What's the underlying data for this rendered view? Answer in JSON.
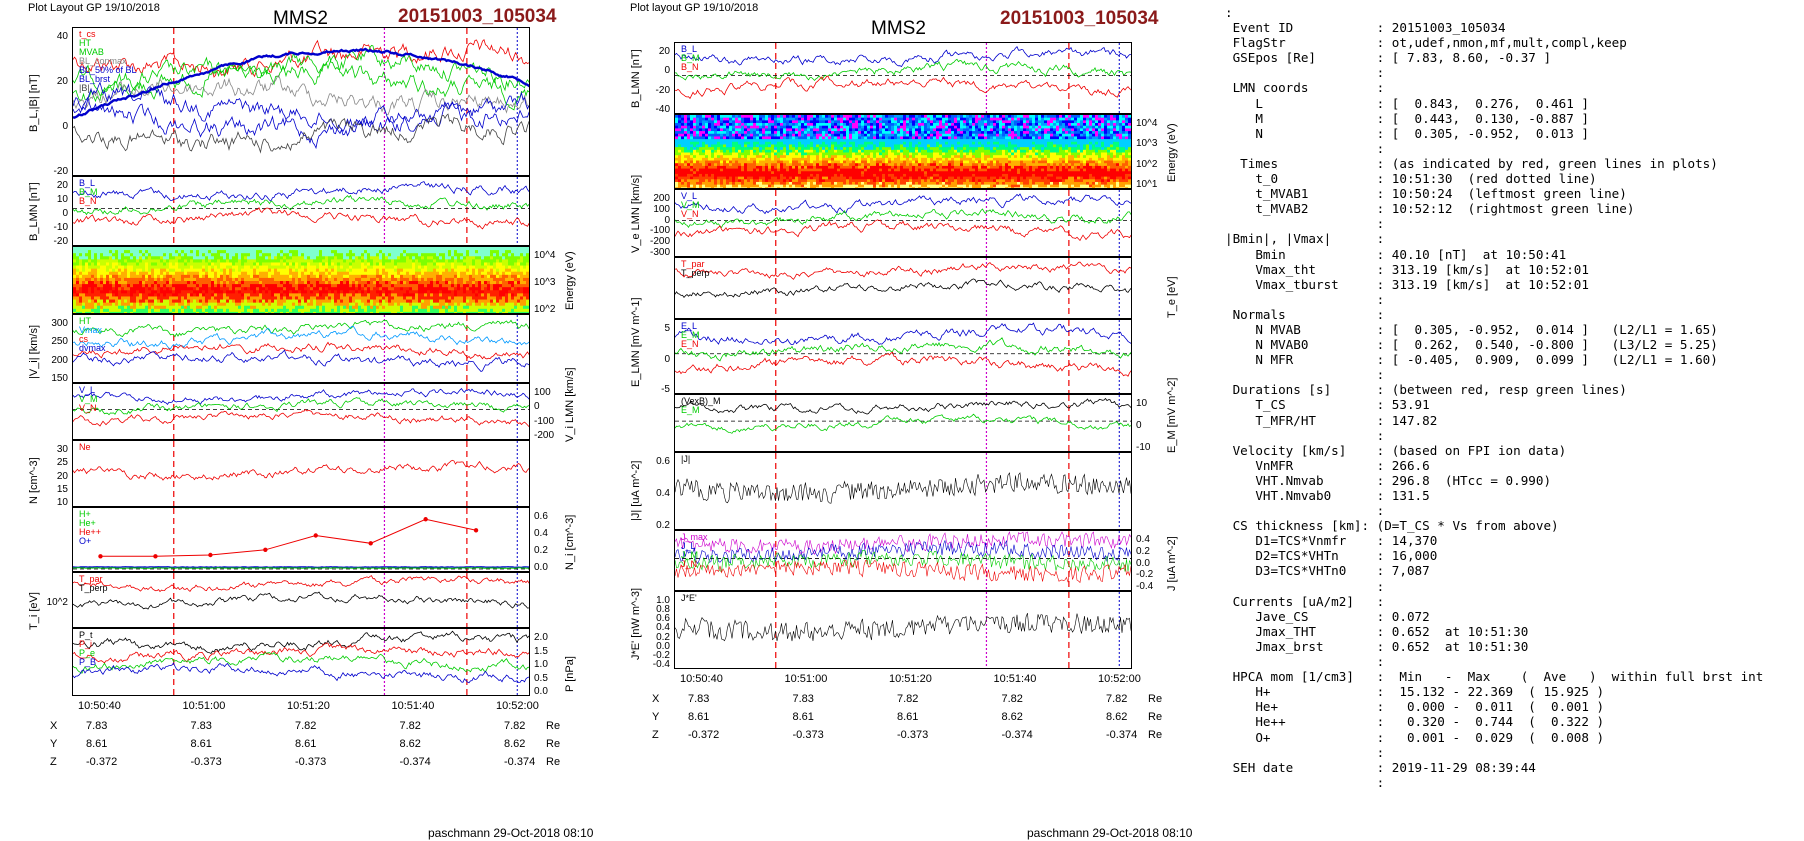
{
  "left": {
    "header": "Plot Layout GP 19/10/2018",
    "title": "MMS2",
    "event": "20151003_105034",
    "footer": "paschmann 29-Oct-2018 08:10",
    "xticks": [
      "10:50:40",
      "10:51:00",
      "10:51:20",
      "10:51:40",
      "10:52:00"
    ],
    "pos": {
      "X": [
        "7.83",
        "7.83",
        "7.82",
        "7.82",
        "7.82"
      ],
      "Y": [
        "8.61",
        "8.61",
        "8.61",
        "8.62",
        "8.62"
      ],
      "Z": [
        "-0.372",
        "-0.373",
        "-0.373",
        "-0.374",
        "-0.374"
      ],
      "unit": "Re"
    },
    "panels": [
      {
        "ylabel": "B_L,|B| [nT]",
        "yticks": [
          "40",
          "20",
          "0",
          "-20"
        ],
        "legend": [
          "t_cs",
          "HT",
          "MVAB",
          "BL_conmax",
          "BL_50% of BL",
          "BL_brst",
          "|B|"
        ],
        "legend_colors": [
          "#e00",
          "#0c0",
          "#0c0",
          "#888",
          "#00c",
          "#00c",
          "#444"
        ]
      },
      {
        "ylabel": "B_LMN [nT]",
        "yticks": [
          "20",
          "10",
          "0",
          "-10",
          "-20"
        ],
        "legend": [
          "B_L",
          "B_M",
          "B_N"
        ],
        "legend_colors": [
          "#00c",
          "#0c0",
          "#e00"
        ]
      },
      {
        "ylabel": "Energy (eV)",
        "yticks": [
          "10^4",
          "10^3",
          "10^2"
        ]
      },
      {
        "ylabel": "|V_i| [km/s]",
        "yticks": [
          "300",
          "250",
          "200",
          "150"
        ],
        "legend": [
          "HT",
          "Vmax",
          "cs",
          "dvmax"
        ],
        "legend_colors": [
          "#0c0",
          "#09f",
          "#e00",
          "#00c"
        ]
      },
      {
        "ylabel": "V_i LMN [km/s]",
        "yticks": [
          "100",
          "0",
          "-100",
          "-200"
        ],
        "legend": [
          "V_L",
          "V_M",
          "V_N"
        ],
        "legend_colors": [
          "#00c",
          "#0c0",
          "#e00"
        ]
      },
      {
        "ylabel": "N [cm^-3]",
        "yticks": [
          "30",
          "25",
          "20",
          "15",
          "10"
        ],
        "legend": [
          "Ne"
        ],
        "legend_colors": [
          "#e00"
        ]
      },
      {
        "ylabel": "N_i [cm^-3]",
        "yticks": [
          "0.6",
          "0.4",
          "0.2",
          "0.0"
        ],
        "legend": [
          "H+",
          "He+",
          "He++",
          "O+"
        ],
        "legend_colors": [
          "#0c0",
          "#0c0",
          "#e00",
          "#00c"
        ]
      },
      {
        "ylabel": "T_i [eV]",
        "yticks": [
          "10^2"
        ],
        "legend": [
          "T_par",
          "T_perp"
        ],
        "legend_colors": [
          "#e00",
          "#000"
        ]
      },
      {
        "ylabel": "P [nPa]",
        "yticks": [
          "2.0",
          "1.5",
          "1.0",
          "0.5",
          "0.0"
        ],
        "legend": [
          "P_t",
          "P_i",
          "P_e",
          "P_B"
        ],
        "legend_colors": [
          "#000",
          "#e00",
          "#0c0",
          "#00c"
        ]
      }
    ]
  },
  "middle": {
    "header": "Plot layout GP 19/10/2018",
    "title": "MMS2",
    "event": "20151003_105034",
    "footer": "paschmann 29-Oct-2018 08:10",
    "xticks": [
      "10:50:40",
      "10:51:00",
      "10:51:20",
      "10:51:40",
      "10:52:00"
    ],
    "pos": {
      "X": [
        "7.83",
        "7.83",
        "7.82",
        "7.82",
        "7.82"
      ],
      "Y": [
        "8.61",
        "8.61",
        "8.61",
        "8.62",
        "8.62"
      ],
      "Z": [
        "-0.372",
        "-0.373",
        "-0.373",
        "-0.374",
        "-0.374"
      ],
      "unit": "Re"
    },
    "panels": [
      {
        "ylabel": "B_LMN [nT]",
        "yticks": [
          "20",
          "0",
          "-20",
          "-40"
        ],
        "legend": [
          "B_L",
          "B_M",
          "B_N"
        ],
        "legend_colors": [
          "#00c",
          "#0c0",
          "#e00"
        ]
      },
      {
        "ylabel": "Energy (eV)",
        "yticks": [
          "10^4",
          "10^3",
          "10^2",
          "10^1"
        ]
      },
      {
        "ylabel": "V_e LMN [km/s]",
        "yticks": [
          "200",
          "100",
          "0",
          "-100",
          "-200",
          "-300"
        ],
        "legend": [
          "V_L",
          "V_M",
          "V_N"
        ],
        "legend_colors": [
          "#00c",
          "#0c0",
          "#e00"
        ]
      },
      {
        "ylabel": "T_e [eV]",
        "yticks": [],
        "legend": [
          "T_par",
          "T_perp"
        ],
        "legend_colors": [
          "#e00",
          "#000"
        ]
      },
      {
        "ylabel": "E_LMN [mV m^-1]",
        "yticks": [
          "5",
          "0",
          "-5"
        ],
        "legend": [
          "E_L",
          "E_M",
          "E_N"
        ],
        "legend_colors": [
          "#00c",
          "#0c0",
          "#e00"
        ]
      },
      {
        "ylabel": "E_M [mV m^-2]",
        "yticks": [
          "10",
          "0",
          "-10"
        ],
        "legend": [
          "(VexB)_M",
          "E_M"
        ],
        "legend_colors": [
          "#000",
          "#0c0"
        ]
      },
      {
        "ylabel": "|J| [uA m^-2]",
        "yticks": [
          "0.6",
          "0.4",
          "0.2"
        ],
        "legend": [
          "|J|"
        ],
        "legend_colors": [
          "#000"
        ]
      },
      {
        "ylabel": "J [uA m^-2]",
        "yticks": [
          "0.4",
          "0.2",
          "0.0",
          "-0.2",
          "-0.4"
        ],
        "legend": [
          "J_max",
          "J_L",
          "J_M",
          "J_N"
        ],
        "legend_colors": [
          "#c0c",
          "#00c",
          "#0c0",
          "#e00"
        ]
      },
      {
        "ylabel": "J*E' [nW m^-3]",
        "yticks": [
          "1.0",
          "0.8",
          "0.6",
          "0.4",
          "0.2",
          "0.0",
          "-0.2",
          "-0.4"
        ],
        "legend": [
          "J*E'"
        ],
        "legend_colors": [
          "#000"
        ]
      }
    ]
  },
  "info": {
    "lines": [
      ":",
      " Event ID           : 20151003_105034",
      " FlagStr            : ot,udef,nmon,mf,mult,compl,keep",
      " GSEpos [Re]        : [ 7.83, 8.60, -0.37 ]",
      "                    :",
      " LMN coords         :",
      "    L               : [  0.843,  0.276,  0.461 ]",
      "    M               : [  0.443,  0.130, -0.887 ]",
      "    N               : [  0.305, -0.952,  0.013 ]",
      "                    :",
      "  Times             : (as indicated by red, green lines in plots)",
      "    t_0             : 10:51:30  (red dotted line)",
      "    t_MVAB1         : 10:50:24  (leftmost green line)",
      "    t_MVAB2         : 10:52:12  (rightmost green line)",
      "                    :",
      "|Bmin|, |Vmax|      :",
      "    Bmin            : 40.10 [nT]  at 10:50:41",
      "    Vmax_tht        : 313.19 [km/s]  at 10:52:01",
      "    Vmax_tburst     : 313.19 [km/s]  at 10:52:01",
      "                    :",
      " Normals            :",
      "    N MVAB          : [  0.305, -0.952,  0.014 ]   (L2/L1 = 1.65)",
      "    N MVAB0         : [  0.262,  0.540, -0.800 ]   (L3/L2 = 5.25)",
      "    N MFR           : [ -0.405,  0.909,  0.099 ]   (L2/L1 = 1.60)",
      "                    :",
      " Durations [s]      : (between red, resp green lines)",
      "    T_CS            : 53.91",
      "    T_MFR/HT        : 147.82",
      "                    :",
      " Velocity [km/s]    : (based on FPI ion data)",
      "    VnMFR           : 266.6",
      "    VHT.Nmvab       : 296.8  (HTcc = 0.990)",
      "    VHT.Nmvab0      : 131.5",
      "                    :",
      " CS thickness [km]: (D=T_CS * Vs from above)",
      "    D1=TCS*Vnmfr    : 14,370",
      "    D2=TCS*VHTn     : 16,000",
      "    D3=TCS*VHTn0    : 7,087",
      "                    :",
      " Currents [uA/m2]   :",
      "    Jave_CS         : 0.072",
      "    Jmax_THT        : 0.652  at 10:51:30",
      "    Jmax_brst       : 0.652  at 10:51:30",
      "                    :",
      " HPCA mom [1/cm3]   :  Min   -  Max    (  Ave   )  within full brst int",
      "    H+              :  15.132 - 22.369  ( 15.925 )",
      "    He+             :   0.000 -  0.011  (  0.001 )",
      "    He++            :   0.320 -  0.744  (  0.322 )",
      "    O+              :   0.001 -  0.029  (  0.008 )",
      "                    :",
      " SEH date           : 2019-11-29 08:39:44",
      "                    :"
    ]
  },
  "chart_data": [
    {
      "type": "line",
      "title": "MMS2",
      "subtitle": "20151003_105034",
      "xlabel": "",
      "x_ticks": [
        "10:50:40",
        "10:51:00",
        "10:51:20",
        "10:51:40",
        "10:52:00"
      ],
      "x_range": [
        "10:50:29",
        "10:52:03"
      ],
      "markers": {
        "red_dashed": [
          "10:50:43",
          "10:51:38"
        ],
        "magenta_dotted": [
          "10:51:30"
        ],
        "blue_dotted": [
          "10:52:01"
        ]
      },
      "ylabels": [
        "B_L,|B| [nT]",
        "B_LMN [nT]",
        "Energy (eV)",
        "|V_i| [km/s]",
        "V_i LMN [km/s]",
        "N [cm^-3]",
        "N_i [cm^-3]",
        "T_i [eV]",
        "P [nPa]"
      ]
    },
    {
      "type": "line",
      "title": "MMS2",
      "subtitle": "20151003_105034",
      "xlabel": "",
      "x_ticks": [
        "10:50:40",
        "10:51:00",
        "10:51:20",
        "10:51:40",
        "10:52:00"
      ],
      "x_range": [
        "10:50:29",
        "10:52:03"
      ],
      "markers": {
        "red_dashed": [
          "10:50:43",
          "10:51:38"
        ],
        "magenta_dotted": [
          "10:51:30"
        ],
        "blue_dotted": [
          "10:52:01"
        ]
      },
      "ylabels": [
        "B_LMN [nT]",
        "Energy (eV)",
        "V_e LMN [km/s]",
        "T_e [eV]",
        "E_LMN [mV m^-1]",
        "E_M [mV m^-2]",
        "|J| [uA m^-2]",
        "J [uA m^-2]",
        "J*E' [nW m^-3]"
      ]
    }
  ]
}
